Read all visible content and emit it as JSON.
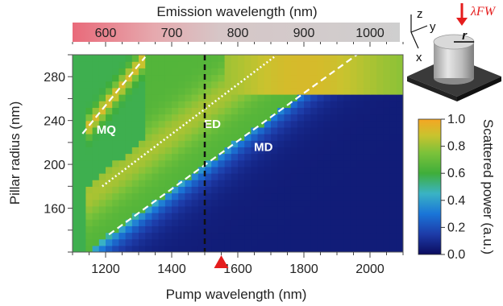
{
  "chart_data": {
    "type": "heatmap",
    "xlabel": "Pump wavelength (nm)",
    "ylabel": "Pillar radius (nm)",
    "top_xlabel": "Emission wavelength (nm)",
    "colorbar_label": "Scattered power (a.u.)",
    "xlim": [
      1100,
      2100
    ],
    "ylim": [
      120,
      300
    ],
    "x_ticks": [
      1200,
      1400,
      1600,
      1800,
      2000
    ],
    "y_ticks": [
      160,
      200,
      240,
      280
    ],
    "top_ticks": [
      600,
      700,
      800,
      900,
      1000
    ],
    "colorbar_range": [
      0.0,
      1.0
    ],
    "colorbar_ticks": [
      "0.0",
      "0.2",
      "0.4",
      "0.6",
      "0.8",
      "1.0"
    ],
    "mode_lines": [
      {
        "label": "MQ",
        "style": "dashed",
        "from": [
          1130,
          228
        ],
        "to": [
          1320,
          298
        ]
      },
      {
        "label": "ED",
        "style": "dotted",
        "from": [
          1190,
          180
        ],
        "to": [
          1710,
          298
        ]
      },
      {
        "label": "MD",
        "style": "dashed",
        "from": [
          1210,
          136
        ],
        "to": [
          1960,
          300
        ]
      }
    ],
    "vertical_marker": {
      "x": 1500,
      "style": "dashed"
    },
    "pump_marker": {
      "x": 1550
    },
    "inset_labels": {
      "z": "z",
      "y": "y",
      "x": "x",
      "r": "r",
      "lambda": "λFW"
    }
  },
  "colors": {
    "colormap": [
      "#0b0c5e",
      "#1d3ba8",
      "#1a75d8",
      "#3ab3c4",
      "#3fae3a",
      "#7bc23a",
      "#c9c32e",
      "#f5a623"
    ],
    "top_bar_left": "#e96a7a",
    "top_bar_right": "#c8c8c8",
    "pump_marker": "#e51d1d",
    "arrow": "#e51d1d"
  }
}
